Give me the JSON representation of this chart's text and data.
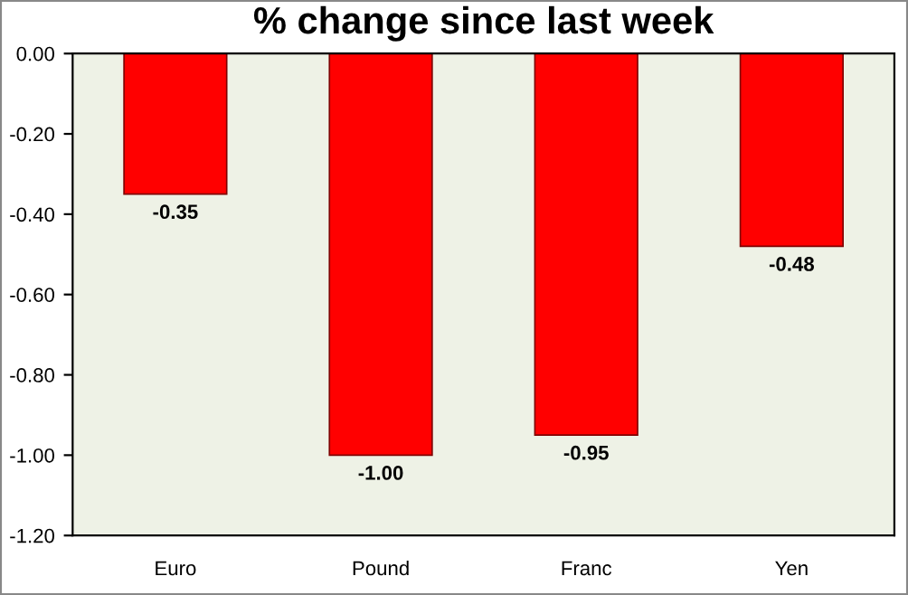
{
  "chart_data": {
    "type": "bar",
    "title": "% change since last week",
    "categories": [
      "Euro",
      "Pound",
      "Franc",
      "Yen"
    ],
    "values": [
      -0.35,
      -1.0,
      -0.95,
      -0.48
    ],
    "value_labels": [
      "-0.35",
      "-1.00",
      "-0.95",
      "-0.48"
    ],
    "color": "#ff0000",
    "ylim": [
      -1.2,
      0
    ],
    "yticks": [
      {
        "value": 0,
        "label": "0.00"
      },
      {
        "value": -0.2,
        "label": "-0.20"
      },
      {
        "value": -0.4,
        "label": "-0.40"
      },
      {
        "value": -0.6,
        "label": "-0.60"
      },
      {
        "value": -0.8,
        "label": "-0.80"
      },
      {
        "value": -1.0,
        "label": "-1.00"
      },
      {
        "value": -1.2,
        "label": "-1.20"
      }
    ],
    "grid": false
  }
}
